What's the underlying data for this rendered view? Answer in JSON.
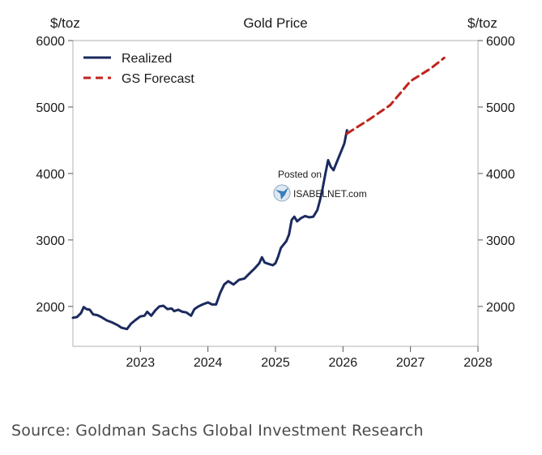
{
  "chart_data": {
    "type": "line",
    "title": "Gold Price",
    "ylabel_left": "$/toz",
    "ylabel_right": "$/toz",
    "ylim": [
      1400,
      6000
    ],
    "xlim": [
      2022.0,
      2028.0
    ],
    "y_ticks": [
      2000,
      3000,
      4000,
      5000,
      6000
    ],
    "x_ticks": [
      2023,
      2024,
      2025,
      2026,
      2027,
      2028
    ],
    "grid": false,
    "legend_position": "top-left",
    "colors": {
      "realized": "#1b2a5e",
      "forecast": "#c0231f"
    },
    "series": [
      {
        "name": "Realized",
        "style": "solid",
        "points": [
          [
            2022.0,
            1830
          ],
          [
            2022.06,
            1840
          ],
          [
            2022.12,
            1900
          ],
          [
            2022.16,
            1990
          ],
          [
            2022.2,
            1960
          ],
          [
            2022.25,
            1950
          ],
          [
            2022.3,
            1880
          ],
          [
            2022.36,
            1870
          ],
          [
            2022.42,
            1840
          ],
          [
            2022.5,
            1790
          ],
          [
            2022.58,
            1760
          ],
          [
            2022.66,
            1720
          ],
          [
            2022.72,
            1680
          ],
          [
            2022.8,
            1660
          ],
          [
            2022.86,
            1740
          ],
          [
            2022.92,
            1790
          ],
          [
            2023.0,
            1850
          ],
          [
            2023.06,
            1860
          ],
          [
            2023.1,
            1920
          ],
          [
            2023.16,
            1860
          ],
          [
            2023.22,
            1940
          ],
          [
            2023.28,
            2000
          ],
          [
            2023.34,
            2010
          ],
          [
            2023.4,
            1960
          ],
          [
            2023.46,
            1970
          ],
          [
            2023.5,
            1930
          ],
          [
            2023.56,
            1950
          ],
          [
            2023.62,
            1920
          ],
          [
            2023.68,
            1910
          ],
          [
            2023.75,
            1860
          ],
          [
            2023.8,
            1960
          ],
          [
            2023.86,
            2000
          ],
          [
            2023.92,
            2030
          ],
          [
            2024.0,
            2060
          ],
          [
            2024.06,
            2030
          ],
          [
            2024.12,
            2030
          ],
          [
            2024.18,
            2200
          ],
          [
            2024.24,
            2330
          ],
          [
            2024.3,
            2380
          ],
          [
            2024.38,
            2330
          ],
          [
            2024.46,
            2400
          ],
          [
            2024.54,
            2420
          ],
          [
            2024.62,
            2500
          ],
          [
            2024.7,
            2580
          ],
          [
            2024.76,
            2650
          ],
          [
            2024.8,
            2740
          ],
          [
            2024.84,
            2660
          ],
          [
            2024.9,
            2640
          ],
          [
            2024.96,
            2620
          ],
          [
            2025.0,
            2650
          ],
          [
            2025.04,
            2750
          ],
          [
            2025.08,
            2880
          ],
          [
            2025.12,
            2930
          ],
          [
            2025.16,
            2980
          ],
          [
            2025.2,
            3080
          ],
          [
            2025.24,
            3300
          ],
          [
            2025.28,
            3350
          ],
          [
            2025.32,
            3280
          ],
          [
            2025.38,
            3330
          ],
          [
            2025.44,
            3360
          ],
          [
            2025.5,
            3340
          ],
          [
            2025.56,
            3350
          ],
          [
            2025.62,
            3450
          ],
          [
            2025.66,
            3600
          ],
          [
            2025.7,
            3780
          ],
          [
            2025.74,
            4000
          ],
          [
            2025.78,
            4200
          ],
          [
            2025.82,
            4100
          ],
          [
            2025.86,
            4050
          ],
          [
            2025.9,
            4150
          ],
          [
            2025.94,
            4250
          ],
          [
            2025.98,
            4350
          ],
          [
            2026.02,
            4450
          ],
          [
            2026.06,
            4650
          ]
        ]
      },
      {
        "name": "GS Forecast",
        "style": "dashed",
        "points": [
          [
            2026.06,
            4600
          ],
          [
            2026.4,
            4820
          ],
          [
            2026.7,
            5030
          ],
          [
            2027.0,
            5390
          ],
          [
            2027.3,
            5580
          ],
          [
            2027.5,
            5740
          ]
        ]
      }
    ]
  },
  "watermark": {
    "line1": "Posted on",
    "line2": "ISABELNET.com"
  },
  "source": "Source: Goldman Sachs Global Investment Research"
}
